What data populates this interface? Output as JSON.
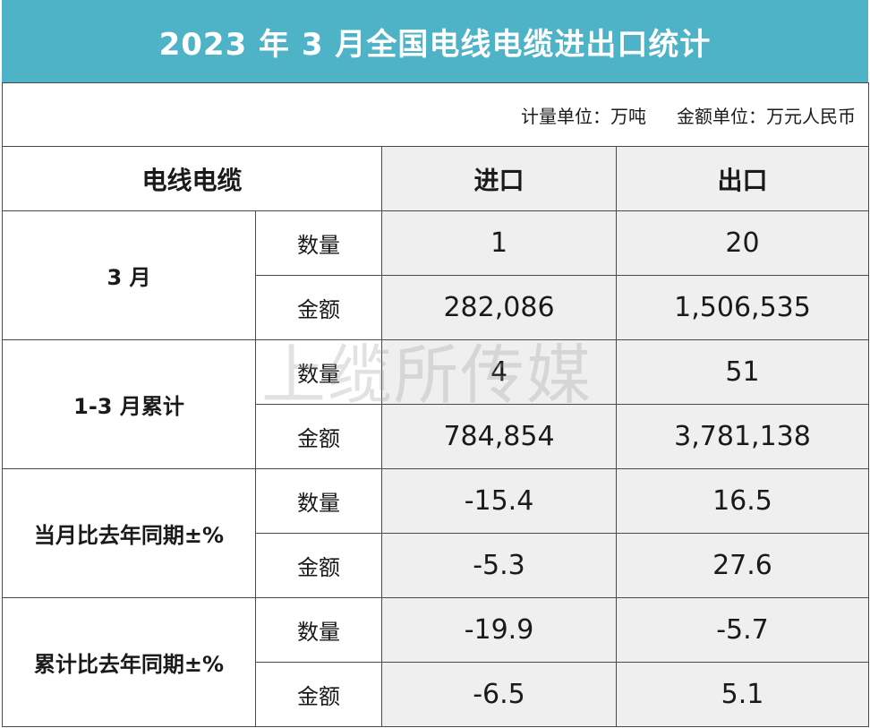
{
  "title": "2023 年 3 月全国电线电缆进出口统计",
  "units": {
    "quantity_unit": "计量单位：万吨",
    "amount_unit": "金额单位：万元人民币"
  },
  "header": {
    "category": "电线电缆",
    "import": "进口",
    "export": "出口"
  },
  "groups": [
    {
      "label": "3 月",
      "rows": [
        {
          "metric": "数量",
          "import": "1",
          "export": "20"
        },
        {
          "metric": "金额",
          "import": "282,086",
          "export": "1,506,535"
        }
      ]
    },
    {
      "label": "1-3 月累计",
      "rows": [
        {
          "metric": "数量",
          "import": "4",
          "export": "51"
        },
        {
          "metric": "金额",
          "import": "784,854",
          "export": "3,781,138"
        }
      ]
    },
    {
      "label": "当月比去年同期±%",
      "rows": [
        {
          "metric": "数量",
          "import": "-15.4",
          "export": "16.5"
        },
        {
          "metric": "金额",
          "import": "-5.3",
          "export": "27.6"
        }
      ]
    },
    {
      "label": "累计比去年同期±%",
      "rows": [
        {
          "metric": "数量",
          "import": "-19.9",
          "export": "-5.7"
        },
        {
          "metric": "金额",
          "import": "-6.5",
          "export": "5.1"
        }
      ]
    }
  ],
  "watermark": "上缆所传媒"
}
